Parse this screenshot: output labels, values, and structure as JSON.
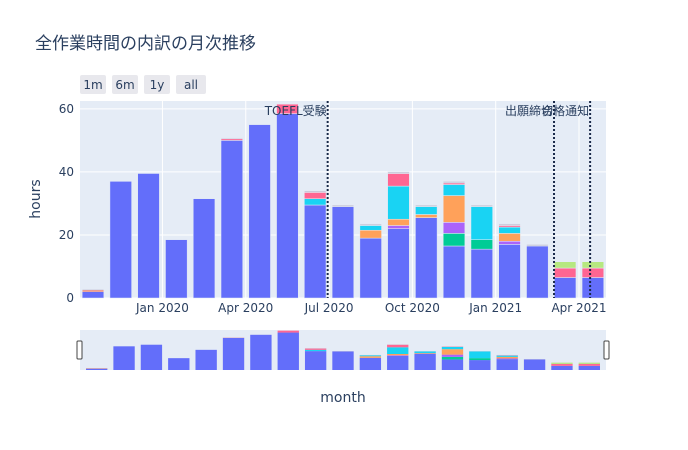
{
  "chart_data": {
    "type": "bar",
    "barmode": "stack",
    "title": "全作業時間の内訳の月次推移",
    "xlabel": "month",
    "ylabel": "hours",
    "ylim": [
      0,
      62.5
    ],
    "yticks": [
      0,
      20,
      40,
      60
    ],
    "xticks": [
      {
        "label": "Jan 2020",
        "month": 3
      },
      {
        "label": "Apr 2020",
        "month": 6
      },
      {
        "label": "Jul 2020",
        "month": 9
      },
      {
        "label": "Oct 2020",
        "month": 12
      },
      {
        "label": "Jan 2021",
        "month": 15
      },
      {
        "label": "Apr 2021",
        "month": 18
      }
    ],
    "categories": [
      "2019-10",
      "2019-11",
      "2019-12",
      "2020-01",
      "2020-02",
      "2020-03",
      "2020-04",
      "2020-05",
      "2020-06",
      "2020-07",
      "2020-08",
      "2020-09",
      "2020-10",
      "2020-11",
      "2020-12",
      "2021-01",
      "2021-02",
      "2021-03",
      "2021-04"
    ],
    "series": [
      {
        "color": "#636efa",
        "values": [
          2,
          37,
          39.5,
          18.5,
          31.5,
          50,
          55,
          58.5,
          29.5,
          29,
          19,
          22,
          25.5,
          16.5,
          15.5,
          17,
          16.5,
          6.5,
          6.5
        ]
      },
      {
        "color": "#ef553b",
        "values": [
          0.5,
          0,
          0,
          0,
          0,
          0,
          0,
          0,
          0,
          0,
          0,
          0,
          0,
          0,
          0,
          0,
          0,
          0,
          0
        ]
      },
      {
        "color": "#00cc96",
        "values": [
          0,
          0,
          0,
          0,
          0,
          0,
          0,
          0,
          0,
          0,
          0,
          0,
          0,
          4,
          3,
          0,
          0,
          0,
          0
        ]
      },
      {
        "color": "#ab63fa",
        "values": [
          0,
          0,
          0,
          0,
          0,
          0,
          0,
          0,
          0,
          0,
          0,
          1,
          0,
          3.5,
          0,
          1,
          0,
          0,
          0
        ]
      },
      {
        "color": "#ffa15a",
        "values": [
          0,
          0,
          0,
          0,
          0,
          0,
          0,
          0,
          0,
          0,
          2.5,
          2,
          1,
          8.5,
          0,
          2.5,
          0,
          0,
          0
        ]
      },
      {
        "color": "#19d3f3",
        "values": [
          0,
          0,
          0,
          0,
          0,
          0,
          0,
          0,
          2,
          0,
          1.5,
          10.5,
          2.5,
          3.5,
          10.5,
          2,
          0,
          0,
          0
        ]
      },
      {
        "color": "#ff6692",
        "values": [
          0,
          0,
          0,
          0,
          0,
          0.5,
          0,
          3,
          2,
          0,
          0,
          4,
          0,
          0.5,
          0,
          0.5,
          0,
          3,
          3
        ]
      },
      {
        "color": "#b6e880",
        "values": [
          0,
          0,
          0,
          0,
          0,
          0,
          0,
          0,
          0,
          0,
          0,
          0,
          0,
          0,
          0,
          0,
          0,
          2,
          2
        ]
      },
      {
        "color": "#c8c8d8",
        "values": [
          0.3,
          0,
          0,
          0,
          0,
          0.3,
          0,
          0,
          0.5,
          0.5,
          0.5,
          0.5,
          0.5,
          0.5,
          0.5,
          0.5,
          0.5,
          0,
          0
        ]
      }
    ],
    "annotations": [
      {
        "text": "TOEFL受験",
        "month": 8.95,
        "anchor": "right"
      },
      {
        "text": "出願締切",
        "month": 17.1,
        "anchor": "right"
      },
      {
        "text": "合格通知",
        "month": 18.4,
        "anchor": "right"
      }
    ],
    "vlines": [
      8.95,
      17.1,
      18.4
    ],
    "range_buttons": [
      "1m",
      "6m",
      "1y",
      "all"
    ],
    "rangeslider": true
  }
}
